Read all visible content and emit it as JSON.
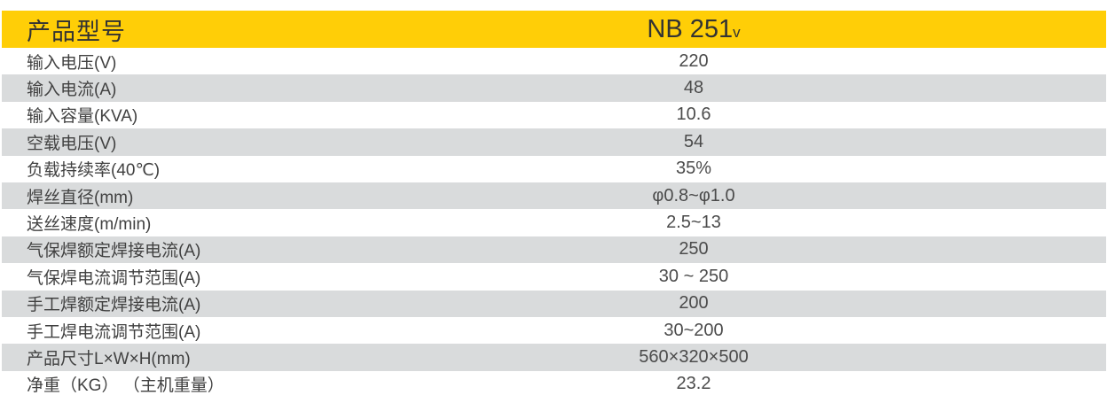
{
  "colors": {
    "header_bg": "#FFCE07",
    "row_alt_bg": "#D9DBDC",
    "header_text": "#333333",
    "body_text": "#414141"
  },
  "table": {
    "header": {
      "label": "产品型号",
      "model": "NB 251",
      "model_suffix": "v"
    },
    "rows": [
      {
        "label": "输入电压(V)",
        "value": "220"
      },
      {
        "label": "输入电流(A)",
        "value": "48"
      },
      {
        "label": "输入容量(KVA)",
        "value": "10.6"
      },
      {
        "label": "空载电压(V)",
        "value": "54"
      },
      {
        "label": "负载持续率(40℃)",
        "value": "35%"
      },
      {
        "label": "焊丝直径(mm)",
        "value": "φ0.8~φ1.0"
      },
      {
        "label": "送丝速度(m/min)",
        "value": "2.5~13"
      },
      {
        "label": "气保焊额定焊接电流(A)",
        "value": "250"
      },
      {
        "label": "气保焊电流调节范围(A)",
        "value": "30 ~ 250"
      },
      {
        "label": "手工焊额定焊接电流(A)",
        "value": "200"
      },
      {
        "label": "手工焊电流调节范围(A)",
        "value": "30~200"
      },
      {
        "label": "产品尺寸L×W×H(mm)",
        "value": "560×320×500"
      },
      {
        "label": "净重（KG） （主机重量）",
        "value": "23.2"
      }
    ]
  }
}
